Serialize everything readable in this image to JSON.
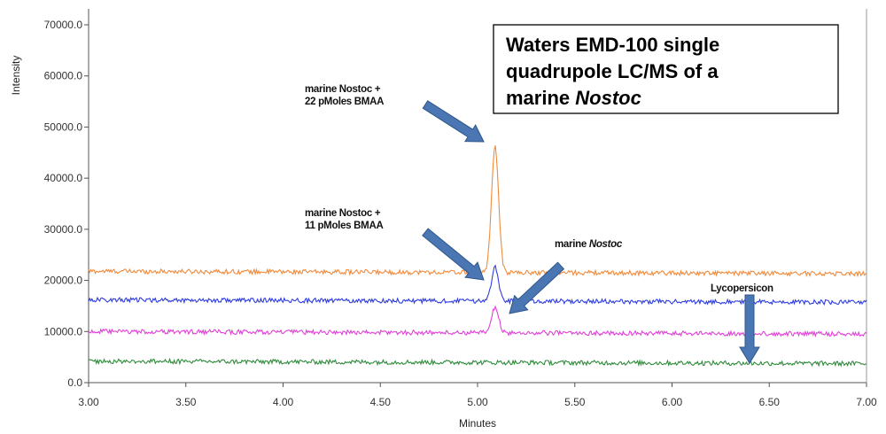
{
  "chart_data": {
    "type": "line",
    "xlabel": "Minutes",
    "ylabel": "Intensity",
    "xlim": [
      3.0,
      7.0
    ],
    "ylim": [
      0,
      72000
    ],
    "x_ticks": [
      "3.00",
      "3.50",
      "4.00",
      "4.50",
      "5.00",
      "5.50",
      "6.00",
      "6.50",
      "7.00"
    ],
    "y_ticks": [
      "0.0",
      "10000.0",
      "20000.0",
      "30000.0",
      "40000.0",
      "50000.0",
      "60000.0",
      "70000.0"
    ],
    "y_tick_values": [
      0,
      10000,
      20000,
      30000,
      40000,
      50000,
      60000,
      70000
    ],
    "x_tick_values": [
      3.0,
      3.5,
      4.0,
      4.5,
      5.0,
      5.5,
      6.0,
      6.5,
      7.0
    ],
    "grid": false,
    "title_box": {
      "line1": "Waters EMD-100 single",
      "line2": "quadrupole LC/MS of a",
      "line3_a": "marine ",
      "line3_b": "Nostoc"
    },
    "series": [
      {
        "color": "#f08a3c",
        "baseline": 21800,
        "peak_x": 5.09,
        "peak_y": 46500,
        "peak_width": 0.018
      },
      {
        "color": "#2e3ce0",
        "baseline": 16200,
        "peak_x": 5.09,
        "peak_y": 23000,
        "peak_width": 0.018
      },
      {
        "color": "#e040d8",
        "baseline": 10000,
        "peak_x": 5.09,
        "peak_y": 15000,
        "peak_width": 0.018
      },
      {
        "color": "#2e8b3a",
        "baseline": 4200,
        "peak_x": null,
        "peak_y": null,
        "peak_width": 0
      }
    ],
    "annotations": [
      {
        "line1": "marine Nostoc +",
        "line2": "22 pMoles BMAA"
      },
      {
        "line1": "marine Nostoc +",
        "line2": "11 pMoles BMAA"
      },
      {
        "line1_a": "marine ",
        "line1_b": "Nostoc"
      },
      {
        "line1": "Lycopersicon"
      }
    ],
    "arrow_color": "#4a76b4"
  }
}
